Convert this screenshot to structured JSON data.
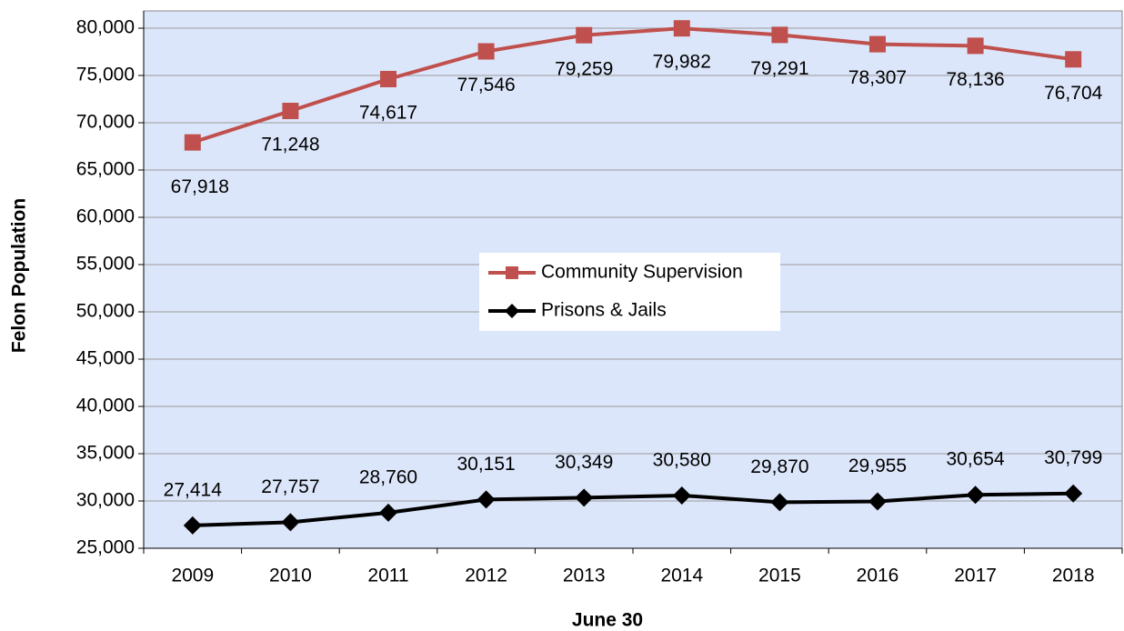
{
  "chart_data": {
    "type": "line",
    "x_label": "June 30",
    "y_label": "Felon Population",
    "categories": [
      "2009",
      "2010",
      "2011",
      "2012",
      "2013",
      "2014",
      "2015",
      "2016",
      "2017",
      "2018"
    ],
    "series": [
      {
        "name": "Community Supervision",
        "color": "#c0504d",
        "marker": "square",
        "values": [
          67918,
          71248,
          74617,
          77546,
          79259,
          79982,
          79291,
          78307,
          78136,
          76704
        ],
        "value_labels": [
          "67,918",
          "71,248",
          "74,617",
          "77,546",
          "79,259",
          "79,982",
          "79,291",
          "78,307",
          "78,136",
          "76,704"
        ]
      },
      {
        "name": "Prisons & Jails",
        "color": "#000000",
        "marker": "diamond",
        "values": [
          27414,
          27757,
          28760,
          30151,
          30349,
          30580,
          29870,
          29955,
          30654,
          30799
        ],
        "value_labels": [
          "27,414",
          "27,757",
          "28,760",
          "30,151",
          "30,349",
          "30,580",
          "29,870",
          "29,955",
          "30,654",
          "30,799"
        ]
      }
    ],
    "ylim": [
      25000,
      80000
    ],
    "yticks": [
      {
        "value": 25000,
        "label": "25,000"
      },
      {
        "value": 30000,
        "label": "30,000"
      },
      {
        "value": 35000,
        "label": "35,000"
      },
      {
        "value": 40000,
        "label": "40,000"
      },
      {
        "value": 45000,
        "label": "45,000"
      },
      {
        "value": 50000,
        "label": "50,000"
      },
      {
        "value": 55000,
        "label": "55,000"
      },
      {
        "value": 60000,
        "label": "60,000"
      },
      {
        "value": 65000,
        "label": "65,000"
      },
      {
        "value": 70000,
        "label": "70,000"
      },
      {
        "value": 75000,
        "label": "75,000"
      },
      {
        "value": 80000,
        "label": "80,000"
      }
    ],
    "grid": true,
    "legend": "center"
  }
}
